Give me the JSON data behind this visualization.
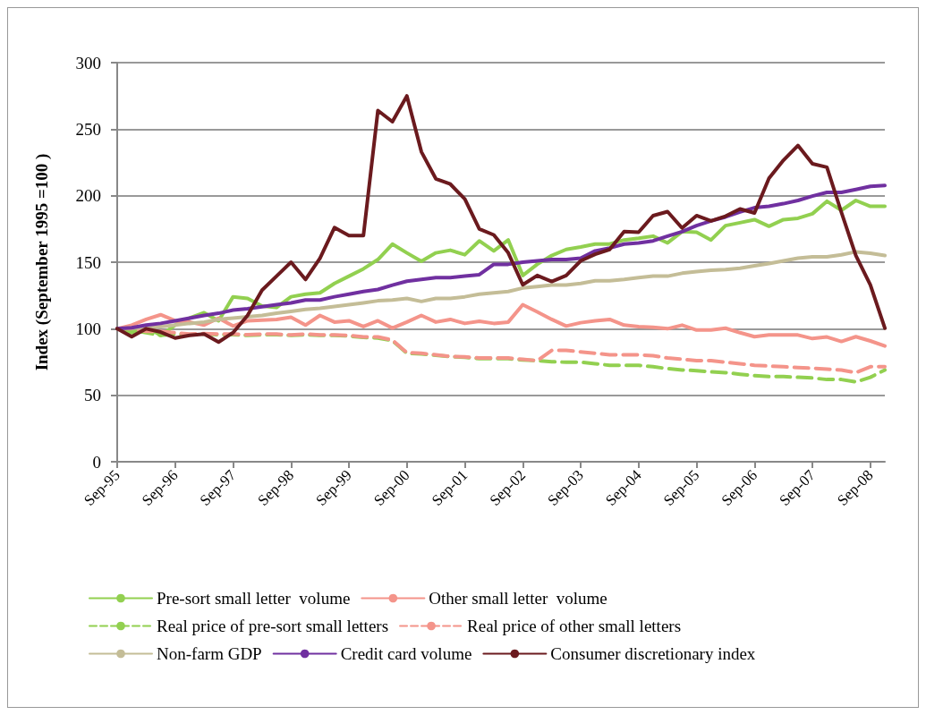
{
  "chart_data": {
    "type": "line",
    "ylabel": "Index (September 1995 =100 )",
    "categories": [
      "Sep-95",
      null,
      null,
      null,
      "Sep-96",
      null,
      null,
      null,
      "Sep-97",
      null,
      null,
      null,
      "Sep-98",
      null,
      null,
      null,
      "Sep-99",
      null,
      null,
      null,
      "Sep-00",
      null,
      null,
      null,
      "Sep-01",
      null,
      null,
      null,
      "Sep-02",
      null,
      null,
      null,
      "Sep-03",
      null,
      null,
      null,
      "Sep-04",
      null,
      null,
      null,
      "Sep-05",
      null,
      null,
      null,
      "Sep-06",
      null,
      null,
      null,
      "Sep-07",
      null,
      null,
      null,
      "Sep-08",
      null
    ],
    "ylim": [
      0,
      300
    ],
    "yticks": [
      0,
      50,
      100,
      150,
      200,
      250,
      300
    ],
    "grid": "y",
    "legend": "bottom",
    "marker": "none",
    "series": [
      {
        "name": "Pre-sort small letter  volume",
        "color": "#92d050",
        "line_style": "solid",
        "values": [
          100,
          97,
          101.6,
          95,
          102.7,
          108,
          112,
          106,
          124,
          122.8,
          117,
          116,
          124,
          126,
          127,
          134,
          139.5,
          145,
          152,
          163.6,
          157,
          150.7,
          157,
          159,
          155.6,
          166,
          158.5,
          166.7,
          140,
          148.4,
          155,
          159.6,
          161.4,
          163.6,
          163.6,
          166.7,
          168,
          169.6,
          164.5,
          173,
          172.5,
          166.7,
          177.5,
          179.7,
          182,
          177,
          182,
          183,
          186.4,
          195.8,
          189,
          196.4,
          192,
          192
        ]
      },
      {
        "name": "Other small letter  volume",
        "color": "#f4948a",
        "line_style": "solid",
        "values": [
          100,
          102.7,
          107,
          110.5,
          106,
          105,
          102.7,
          108,
          102,
          106,
          106.5,
          107,
          108.7,
          102.7,
          110,
          105,
          106,
          101.6,
          106,
          100.5,
          105,
          110,
          105,
          107,
          104,
          105.6,
          104,
          105,
          118,
          112.7,
          107,
          102,
          104.5,
          106,
          107,
          102.7,
          101.6,
          101,
          100,
          102.7,
          99,
          99,
          100.4,
          97,
          94,
          95.3,
          95.3,
          95.3,
          92.6,
          93.8,
          90.4,
          94,
          90.8,
          87
        ]
      },
      {
        "name": "Real price of pre-sort small letters",
        "color": "#92d050",
        "line_style": "dashed",
        "values": [
          100,
          99,
          97,
          95,
          96,
          95.5,
          96,
          95.5,
          95.5,
          95,
          95.5,
          95.5,
          95,
          95.5,
          95,
          95,
          94.5,
          93.5,
          93,
          91,
          81.5,
          81,
          80,
          79,
          78.5,
          77.5,
          77.5,
          77.5,
          76.5,
          76,
          75.2,
          74.8,
          74.8,
          73.7,
          72.5,
          72.5,
          72.5,
          71.4,
          70,
          69,
          68.5,
          67.6,
          67,
          65.8,
          64.7,
          64,
          64,
          63.5,
          63,
          61.8,
          61.8,
          60,
          63.5,
          69
        ]
      },
      {
        "name": "Real price of other small letters",
        "color": "#f4948a",
        "line_style": "dashed",
        "values": [
          100,
          100,
          98,
          98,
          97,
          96,
          96.4,
          96,
          96,
          95.5,
          96,
          96,
          95.3,
          96,
          95.3,
          95.3,
          95,
          93.8,
          93.8,
          91.5,
          82,
          81.5,
          80.4,
          79.2,
          78.8,
          78,
          78,
          78,
          77,
          76,
          83.7,
          83.7,
          82.6,
          81.5,
          80.4,
          80.4,
          80.4,
          79.7,
          78,
          77,
          76,
          76,
          74.8,
          73.7,
          72.5,
          72,
          71.4,
          70.8,
          70.3,
          69.6,
          69,
          67,
          71.4,
          71.4
        ]
      },
      {
        "name": "Non-farm GDP",
        "color": "#c4bd97",
        "line_style": "solid",
        "values": [
          100,
          100.5,
          100.5,
          101.6,
          102.7,
          104,
          105,
          107,
          108,
          109,
          110,
          111.6,
          113,
          114.5,
          115.4,
          116.7,
          118,
          119.4,
          121,
          121.6,
          122.8,
          120.5,
          122.8,
          122.8,
          124,
          126,
          127,
          128,
          130.6,
          131.7,
          132.8,
          132.8,
          134,
          136,
          136,
          137,
          138.4,
          139.5,
          139.5,
          141.7,
          143,
          144,
          144.4,
          145.5,
          147.3,
          149,
          151,
          153,
          154,
          154,
          155.6,
          157.8,
          156.7,
          155
        ]
      },
      {
        "name": "Credit card volume",
        "color": "#7030a0",
        "line_style": "solid",
        "values": [
          100,
          100.7,
          102.7,
          104,
          106,
          108,
          110,
          111.6,
          114,
          115,
          116.5,
          118,
          119.4,
          121.6,
          121.6,
          124,
          126,
          128,
          129.5,
          132.8,
          135.7,
          137,
          138.4,
          138.4,
          139.5,
          140.6,
          148.4,
          148.4,
          150,
          151,
          152,
          152,
          153,
          158.5,
          160.7,
          163.6,
          164.5,
          166,
          169.6,
          173,
          177.5,
          181,
          184,
          187.7,
          191,
          192,
          194,
          196.4,
          199.7,
          202.5,
          202.5,
          204.7,
          207,
          207.6
        ]
      },
      {
        "name": "Consumer discretionary index",
        "color": "#6b1a1e",
        "line_style": "solid",
        "values": [
          100,
          94,
          100,
          97.5,
          93,
          95,
          96,
          90,
          97,
          110,
          129,
          139.5,
          150,
          137,
          153,
          176,
          170,
          170,
          264,
          255.6,
          275,
          233,
          212.7,
          208.7,
          197.5,
          175,
          170.5,
          157,
          133,
          140,
          135.5,
          140,
          151,
          156,
          159.6,
          173,
          172.5,
          185,
          188,
          175.7,
          185,
          181,
          184.6,
          190,
          187,
          213,
          226.6,
          237.7,
          224,
          221.4,
          187.5,
          155,
          133,
          100.4
        ]
      }
    ]
  }
}
